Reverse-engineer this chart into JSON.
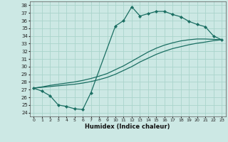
{
  "bg_color": "#cce8e4",
  "grid_color": "#aad4cc",
  "line_color": "#1a6e62",
  "xlim": [
    -0.5,
    23.5
  ],
  "ylim": [
    23.5,
    38.5
  ],
  "xticks": [
    0,
    1,
    2,
    3,
    4,
    5,
    6,
    7,
    8,
    9,
    10,
    11,
    12,
    13,
    14,
    15,
    16,
    17,
    18,
    19,
    20,
    21,
    22,
    23
  ],
  "yticks": [
    24,
    25,
    26,
    27,
    28,
    29,
    30,
    31,
    32,
    33,
    34,
    35,
    36,
    37,
    38
  ],
  "xlabel": "Humidex (Indice chaleur)",
  "series_a_x": [
    0,
    1,
    2,
    3,
    4,
    5,
    6,
    7,
    10,
    11,
    12,
    13,
    14,
    15,
    16,
    17,
    18,
    19,
    20,
    21,
    22,
    23
  ],
  "series_a_y": [
    27.2,
    26.8,
    26.2,
    25.0,
    24.8,
    24.5,
    24.4,
    26.6,
    35.3,
    36.0,
    37.8,
    36.6,
    36.9,
    37.2,
    37.2,
    36.8,
    36.5,
    35.9,
    35.5,
    35.2,
    34.0,
    33.5
  ],
  "series_b_x": [
    0,
    1,
    2,
    3,
    4,
    5,
    6,
    7,
    8,
    9,
    10,
    11,
    12,
    13,
    14,
    15,
    16,
    17,
    18,
    19,
    20,
    21,
    22,
    23
  ],
  "series_b_y": [
    27.2,
    27.3,
    27.4,
    27.5,
    27.6,
    27.7,
    27.85,
    28.05,
    28.3,
    28.6,
    29.0,
    29.5,
    30.0,
    30.6,
    31.1,
    31.6,
    32.0,
    32.35,
    32.6,
    32.85,
    33.05,
    33.2,
    33.38,
    33.5
  ],
  "series_c_x": [
    0,
    1,
    2,
    3,
    4,
    5,
    6,
    7,
    8,
    9,
    10,
    11,
    12,
    13,
    14,
    15,
    16,
    17,
    18,
    19,
    20,
    21,
    22,
    23
  ],
  "series_c_y": [
    27.2,
    27.35,
    27.55,
    27.7,
    27.85,
    28.0,
    28.2,
    28.45,
    28.75,
    29.1,
    29.6,
    30.1,
    30.7,
    31.3,
    31.9,
    32.4,
    32.8,
    33.1,
    33.35,
    33.5,
    33.6,
    33.6,
    33.55,
    33.5
  ]
}
